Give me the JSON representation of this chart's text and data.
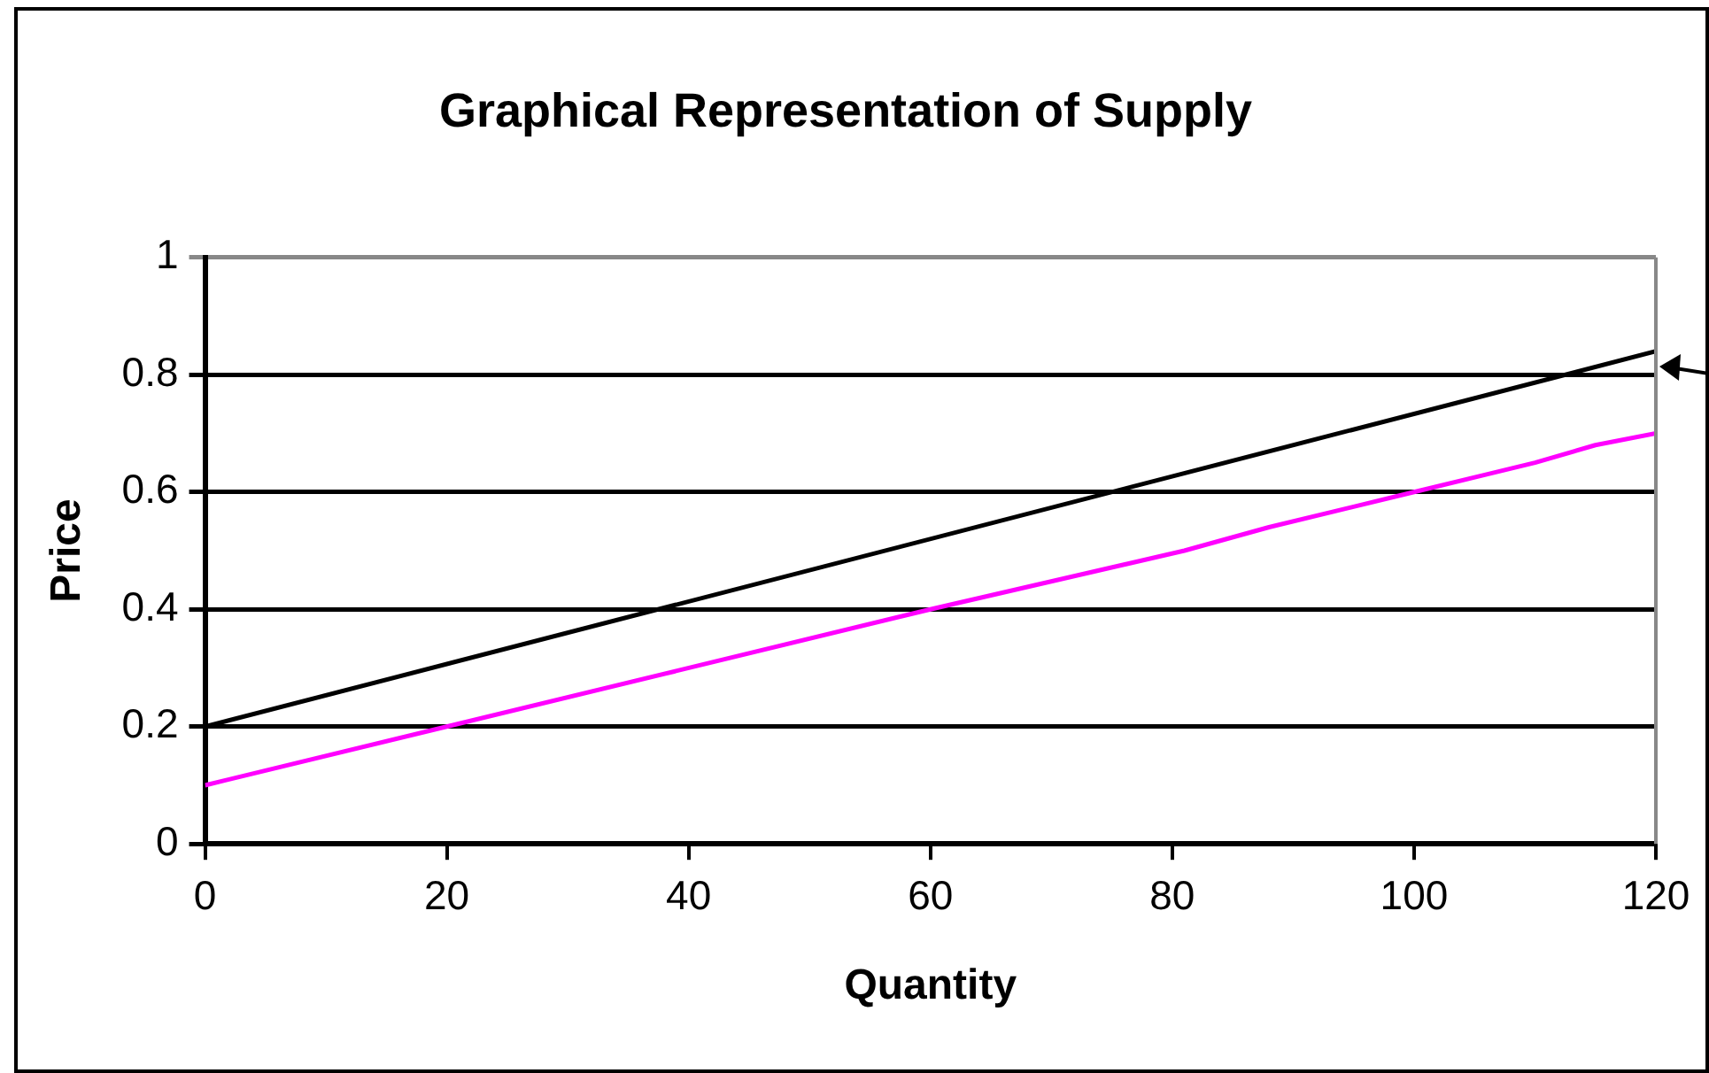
{
  "chart_data": {
    "type": "line",
    "title": "Graphical Representation of Supply",
    "xlabel": "Quantity",
    "ylabel": "Price",
    "xlim": [
      0,
      120
    ],
    "xticks": [
      0,
      20,
      40,
      60,
      80,
      100,
      120
    ],
    "ylim": [
      0,
      1
    ],
    "yticks": [
      0,
      0.2,
      0.4,
      0.6,
      0.8,
      1
    ],
    "grid": "y",
    "legend": false,
    "marker": "none",
    "line_style": "solid",
    "series": [
      {
        "color": "#000000",
        "x": [
          0,
          120
        ],
        "values": [
          0.2,
          0.84
        ]
      },
      {
        "color": "#ff00ff",
        "x": [
          0,
          60,
          81,
          88,
          100,
          106,
          110,
          115,
          120
        ],
        "values": [
          0.1,
          0.4,
          0.5,
          0.54,
          0.6,
          0.63,
          0.65,
          0.68,
          0.7
        ]
      }
    ]
  }
}
